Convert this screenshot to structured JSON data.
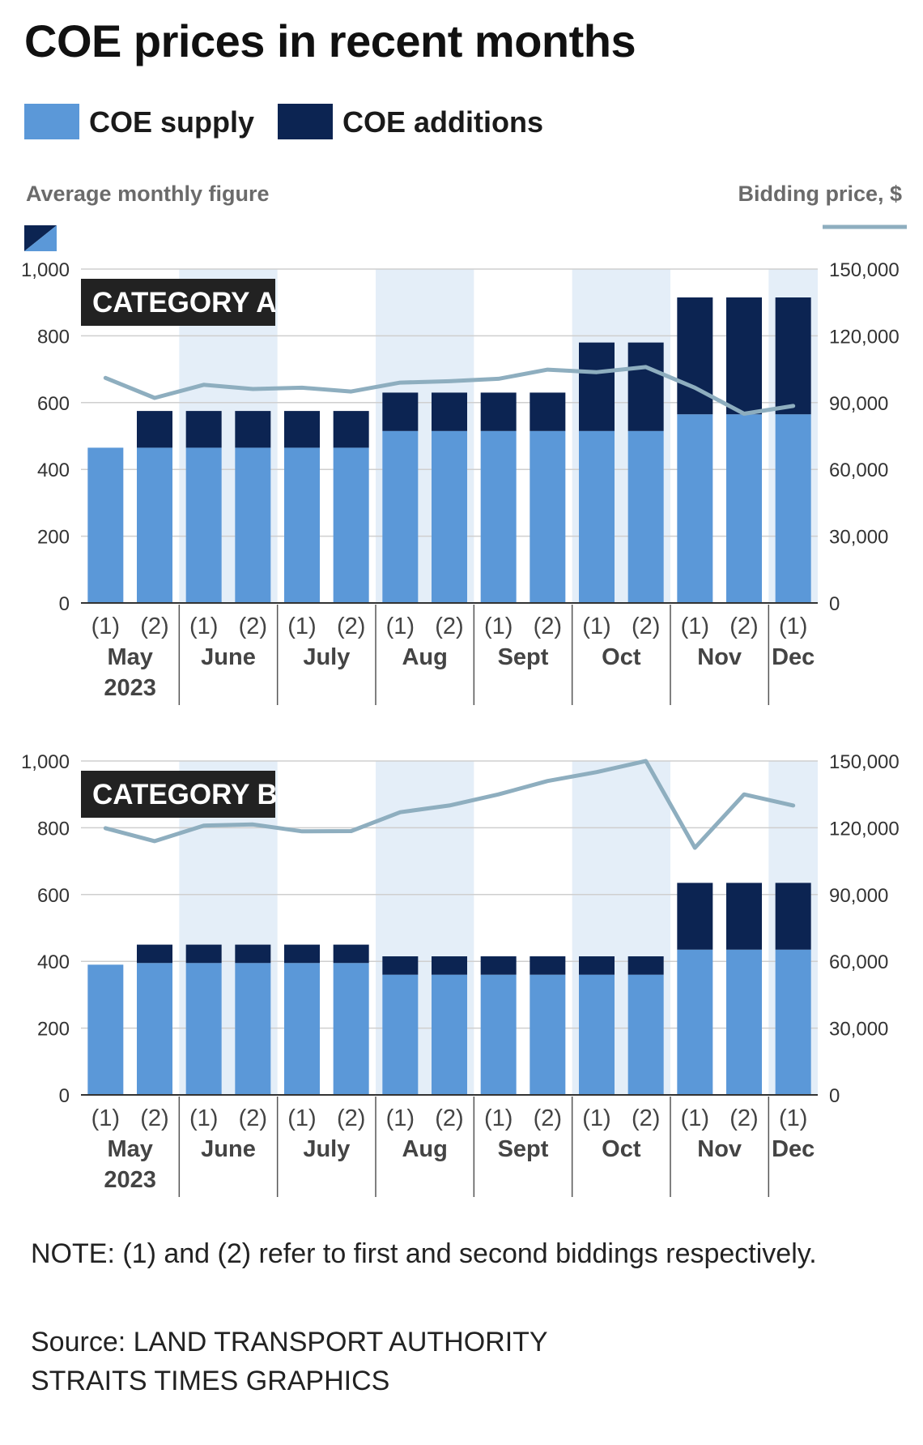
{
  "title": "COE prices in recent months",
  "legend": {
    "supply_label": "COE supply",
    "additions_label": "COE additions",
    "supply_color": "#5b98d8",
    "additions_color": "#0c2452"
  },
  "left_axis_note": "Average monthly figure",
  "right_axis_note": "Bidding price, $",
  "line_color": "#8eaebf",
  "note": "NOTE: (1) and (2) refer to first and second biddings respectively.",
  "source": {
    "line1": "Source: LAND TRANSPORT AUTHORITY",
    "line2": "STRAITS TIMES GRAPHICS"
  },
  "chart_data": [
    {
      "type": "bar",
      "title": "CATEGORY A",
      "categories": [
        "(1)",
        "(2)",
        "(1)",
        "(2)",
        "(1)",
        "(2)",
        "(1)",
        "(2)",
        "(1)",
        "(2)",
        "(1)",
        "(2)",
        "(1)",
        "(2)",
        "(1)"
      ],
      "months": [
        "May",
        "June",
        "July",
        "Aug",
        "Sept",
        "Oct",
        "Nov",
        "Dec"
      ],
      "year_label": "2023",
      "series": [
        {
          "name": "COE supply",
          "values": [
            465,
            465,
            465,
            465,
            465,
            465,
            515,
            515,
            515,
            515,
            515,
            515,
            565,
            565,
            565
          ]
        },
        {
          "name": "COE additions",
          "values": [
            0,
            110,
            110,
            110,
            110,
            110,
            115,
            115,
            115,
            115,
            265,
            265,
            350,
            350,
            350
          ]
        },
        {
          "name": "Bidding price",
          "axis": "right",
          "values": [
            101100,
            92100,
            98000,
            96100,
            96700,
            95000,
            99000,
            99600,
            100700,
            104800,
            103700,
            106000,
            96700,
            85000,
            88500
          ]
        }
      ],
      "ylim": [
        0,
        1000
      ],
      "yticks": [
        "0",
        "200",
        "400",
        "600",
        "800",
        "1,000"
      ],
      "y2lim": [
        0,
        150000
      ],
      "y2ticks": [
        "0",
        "30,000",
        "60,000",
        "90,000",
        "120,000",
        "150,000"
      ]
    },
    {
      "type": "bar",
      "title": "CATEGORY B",
      "categories": [
        "(1)",
        "(2)",
        "(1)",
        "(2)",
        "(1)",
        "(2)",
        "(1)",
        "(2)",
        "(1)",
        "(2)",
        "(1)",
        "(2)",
        "(1)",
        "(2)",
        "(1)"
      ],
      "months": [
        "May",
        "June",
        "July",
        "Aug",
        "Sept",
        "Oct",
        "Nov",
        "Dec"
      ],
      "year_label": "2023",
      "series": [
        {
          "name": "COE supply",
          "values": [
            390,
            395,
            395,
            395,
            395,
            395,
            360,
            360,
            360,
            360,
            360,
            360,
            435,
            435,
            435
          ]
        },
        {
          "name": "COE additions",
          "values": [
            0,
            55,
            55,
            55,
            55,
            55,
            55,
            55,
            55,
            55,
            55,
            55,
            200,
            200,
            200
          ]
        },
        {
          "name": "Bidding price",
          "axis": "right",
          "values": [
            119800,
            114000,
            121000,
            121500,
            118400,
            118500,
            127000,
            130000,
            135000,
            141000,
            145000,
            150000,
            111000,
            135000,
            130000
          ]
        }
      ],
      "ylim": [
        0,
        1000
      ],
      "yticks": [
        "0",
        "200",
        "400",
        "600",
        "800",
        "1,000"
      ],
      "y2lim": [
        0,
        150000
      ],
      "y2ticks": [
        "0",
        "30,000",
        "60,000",
        "90,000",
        "120,000",
        "150,000"
      ]
    }
  ]
}
